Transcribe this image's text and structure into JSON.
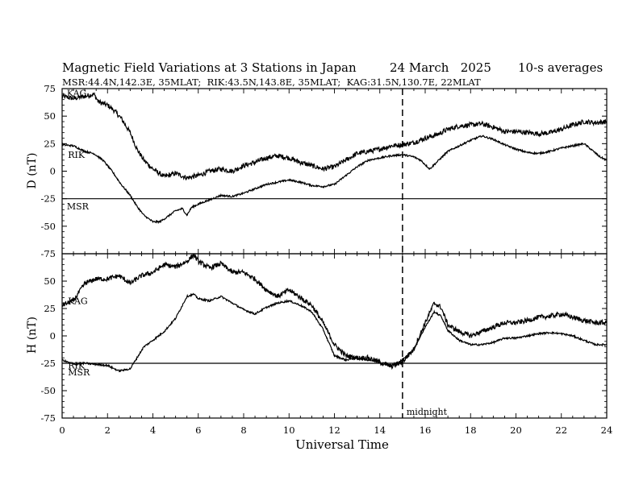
{
  "chart_data": {
    "type": "line",
    "title": "Magnetic Field Variations at 3 Stations in Japan",
    "date": "24 March   2025",
    "averaging": "10-s averages",
    "subtitle": "MSR:44.4N,142.3E, 35MLAT;  RIK:43.5N,143.8E, 35MLAT;  KAG:31.5N,130.7E, 22MLAT",
    "xlabel": "Universal Time",
    "xlim": [
      0,
      24
    ],
    "xticks": [
      0,
      2,
      4,
      6,
      8,
      10,
      12,
      14,
      16,
      18,
      20,
      22,
      24
    ],
    "xtick_labels": [
      "0",
      "2",
      "4",
      "6",
      "8",
      "10",
      "12",
      "14",
      "16",
      "18",
      "20",
      "22",
      "24"
    ],
    "midnight_marker": {
      "x": 15,
      "label": "midnight"
    },
    "panels": [
      {
        "ylabel": "D (nT)",
        "ylim": [
          -75,
          75
        ],
        "yticks": [
          -75,
          -50,
          -25,
          0,
          25,
          50,
          75
        ],
        "ytick_labels": [
          "-75",
          "-50",
          "-25",
          "0",
          "25",
          "50",
          "75"
        ],
        "series": [
          {
            "name": "KAG",
            "label_pos": [
              0.1,
              71
            ],
            "noise": 2.2,
            "points": [
              [
                0,
                68
              ],
              [
                0.5,
                66
              ],
              [
                1,
                68
              ],
              [
                1.4,
                70
              ],
              [
                1.6,
                63
              ],
              [
                2,
                60
              ],
              [
                2.3,
                55
              ],
              [
                2.6,
                48
              ],
              [
                3,
                35
              ],
              [
                3.3,
                20
              ],
              [
                3.6,
                10
              ],
              [
                4,
                2
              ],
              [
                4.5,
                -5
              ],
              [
                5,
                -2
              ],
              [
                5.5,
                -6
              ],
              [
                6,
                -4
              ],
              [
                6.5,
                0
              ],
              [
                7,
                2
              ],
              [
                7.5,
                0
              ],
              [
                8,
                5
              ],
              [
                8.5,
                8
              ],
              [
                9,
                12
              ],
              [
                9.5,
                14
              ],
              [
                10,
                12
              ],
              [
                10.5,
                8
              ],
              [
                11,
                5
              ],
              [
                11.5,
                2
              ],
              [
                12,
                4
              ],
              [
                12.5,
                10
              ],
              [
                13,
                16
              ],
              [
                13.5,
                18
              ],
              [
                14,
                20
              ],
              [
                14.5,
                23
              ],
              [
                15,
                24
              ],
              [
                15.5,
                26
              ],
              [
                16,
                30
              ],
              [
                16.5,
                33
              ],
              [
                17,
                38
              ],
              [
                17.5,
                41
              ],
              [
                18,
                42
              ],
              [
                18.5,
                43
              ],
              [
                19,
                40
              ],
              [
                19.5,
                36
              ],
              [
                20,
                36
              ],
              [
                20.5,
                35
              ],
              [
                21,
                34
              ],
              [
                21.5,
                35
              ],
              [
                22,
                38
              ],
              [
                22.5,
                42
              ],
              [
                23,
                45
              ],
              [
                23.5,
                44
              ],
              [
                24,
                45
              ]
            ]
          },
          {
            "name": "RIK",
            "label_pos": [
              0.15,
              15
            ],
            "noise": 0.8,
            "points": [
              [
                0,
                24
              ],
              [
                0.5,
                23
              ],
              [
                1,
                18
              ],
              [
                1.4,
                16
              ],
              [
                1.8,
                10
              ],
              [
                2.2,
                0
              ],
              [
                2.6,
                -12
              ],
              [
                3,
                -22
              ],
              [
                3.3,
                -32
              ],
              [
                3.6,
                -40
              ],
              [
                4,
                -46
              ],
              [
                4.3,
                -46
              ],
              [
                4.6,
                -42
              ],
              [
                5,
                -36
              ],
              [
                5.3,
                -34
              ],
              [
                5.5,
                -40
              ],
              [
                5.7,
                -33
              ],
              [
                6,
                -30
              ],
              [
                6.5,
                -26
              ],
              [
                7,
                -22
              ],
              [
                7.5,
                -23
              ],
              [
                8,
                -20
              ],
              [
                8.5,
                -16
              ],
              [
                9,
                -12
              ],
              [
                9.5,
                -10
              ],
              [
                10,
                -8
              ],
              [
                10.5,
                -10
              ],
              [
                11,
                -13
              ],
              [
                11.5,
                -14
              ],
              [
                12,
                -12
              ],
              [
                12.5,
                -4
              ],
              [
                13,
                4
              ],
              [
                13.5,
                10
              ],
              [
                14,
                12
              ],
              [
                14.5,
                14
              ],
              [
                15,
                15
              ],
              [
                15.5,
                13
              ],
              [
                15.8,
                10
              ],
              [
                16.2,
                2
              ],
              [
                16.5,
                8
              ],
              [
                17,
                18
              ],
              [
                17.5,
                23
              ],
              [
                18,
                28
              ],
              [
                18.5,
                32
              ],
              [
                19,
                29
              ],
              [
                19.5,
                24
              ],
              [
                20,
                20
              ],
              [
                20.5,
                17
              ],
              [
                21,
                16
              ],
              [
                21.5,
                18
              ],
              [
                22,
                21
              ],
              [
                22.5,
                23
              ],
              [
                23,
                25
              ],
              [
                23.3,
                20
              ],
              [
                23.7,
                13
              ],
              [
                24,
                10
              ]
            ]
          },
          {
            "name": "MSR",
            "label_pos": [
              0.1,
              -32
            ],
            "noise": 0,
            "points": [
              [
                0,
                -25
              ],
              [
                24,
                -25
              ]
            ]
          }
        ]
      },
      {
        "ylabel": "H (nT)",
        "ylim": [
          -75,
          75
        ],
        "yticks": [
          -75,
          -50,
          -25,
          0,
          25,
          50,
          75
        ],
        "ytick_labels": [
          "-75",
          "-50",
          "-25",
          "0",
          "25",
          "50",
          "75"
        ],
        "series": [
          {
            "name": "KAG",
            "label_pos": [
              0.15,
              32
            ],
            "noise": 2.2,
            "points": [
              [
                0,
                28
              ],
              [
                0.5,
                32
              ],
              [
                1,
                48
              ],
              [
                1.5,
                52
              ],
              [
                2,
                52
              ],
              [
                2.5,
                55
              ],
              [
                3,
                48
              ],
              [
                3.5,
                55
              ],
              [
                4,
                58
              ],
              [
                4.5,
                65
              ],
              [
                5,
                63
              ],
              [
                5.5,
                68
              ],
              [
                5.8,
                74
              ],
              [
                6,
                68
              ],
              [
                6.5,
                62
              ],
              [
                7,
                66
              ],
              [
                7.5,
                58
              ],
              [
                8,
                58
              ],
              [
                8.5,
                52
              ],
              [
                9,
                42
              ],
              [
                9.5,
                36
              ],
              [
                10,
                42
              ],
              [
                10.5,
                35
              ],
              [
                11,
                28
              ],
              [
                11.5,
                12
              ],
              [
                12,
                -8
              ],
              [
                12.5,
                -18
              ],
              [
                13,
                -20
              ],
              [
                13.5,
                -20
              ],
              [
                14,
                -24
              ],
              [
                14.5,
                -28
              ],
              [
                15,
                -24
              ],
              [
                15.5,
                -12
              ],
              [
                16,
                12
              ],
              [
                16.4,
                30
              ],
              [
                16.7,
                26
              ],
              [
                17,
                10
              ],
              [
                17.5,
                4
              ],
              [
                18,
                0
              ],
              [
                18.5,
                4
              ],
              [
                19,
                8
              ],
              [
                19.5,
                12
              ],
              [
                20,
                12
              ],
              [
                20.5,
                14
              ],
              [
                21,
                17
              ],
              [
                21.5,
                18
              ],
              [
                22,
                20
              ],
              [
                22.5,
                17
              ],
              [
                23,
                14
              ],
              [
                23.5,
                12
              ],
              [
                24,
                12
              ]
            ]
          },
          {
            "name": "RIK",
            "label_pos": [
              0.15,
              -27
            ],
            "noise": 0.8,
            "points": [
              [
                0,
                -22
              ],
              [
                0.5,
                -26
              ],
              [
                1,
                -25
              ],
              [
                2,
                -27
              ],
              [
                2.5,
                -32
              ],
              [
                3,
                -30
              ],
              [
                3.3,
                -20
              ],
              [
                3.6,
                -10
              ],
              [
                4,
                -4
              ],
              [
                4.5,
                4
              ],
              [
                5,
                16
              ],
              [
                5.5,
                36
              ],
              [
                5.8,
                38
              ],
              [
                6,
                34
              ],
              [
                6.5,
                32
              ],
              [
                7,
                36
              ],
              [
                7.5,
                30
              ],
              [
                8,
                24
              ],
              [
                8.5,
                20
              ],
              [
                9,
                26
              ],
              [
                9.5,
                30
              ],
              [
                10,
                32
              ],
              [
                10.5,
                28
              ],
              [
                11,
                22
              ],
              [
                11.5,
                6
              ],
              [
                12,
                -18
              ],
              [
                12.5,
                -22
              ],
              [
                13,
                -20
              ],
              [
                13.5,
                -22
              ],
              [
                14,
                -24
              ],
              [
                14.5,
                -27
              ],
              [
                15,
                -22
              ],
              [
                15.5,
                -12
              ],
              [
                16,
                8
              ],
              [
                16.4,
                22
              ],
              [
                16.7,
                18
              ],
              [
                17,
                5
              ],
              [
                17.5,
                -4
              ],
              [
                18,
                -8
              ],
              [
                18.5,
                -8
              ],
              [
                19,
                -6
              ],
              [
                19.5,
                -2
              ],
              [
                20,
                -2
              ],
              [
                20.5,
                0
              ],
              [
                21,
                2
              ],
              [
                21.5,
                3
              ],
              [
                22,
                2
              ],
              [
                22.5,
                0
              ],
              [
                23,
                -4
              ],
              [
                23.5,
                -8
              ],
              [
                24,
                -8
              ]
            ]
          },
          {
            "name": "MSR",
            "label_pos": [
              0.15,
              -33
            ],
            "noise": 0,
            "points": [
              [
                0,
                -25
              ],
              [
                24,
                -25
              ]
            ]
          }
        ]
      }
    ]
  }
}
